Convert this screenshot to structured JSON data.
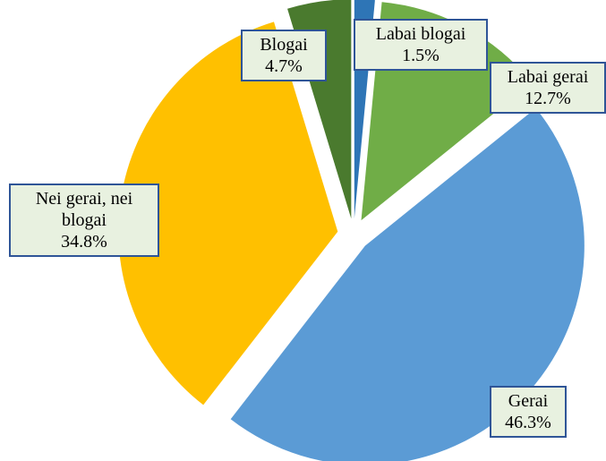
{
  "chart_data": {
    "type": "pie",
    "categories": [
      "Labai blogai",
      "Labai gerai",
      "Gerai",
      "Nei gerai, nei blogai",
      "Blogai"
    ],
    "values": [
      1.5,
      12.7,
      46.3,
      34.8,
      4.7
    ],
    "value_labels": [
      "1.5%",
      "12.7%",
      "46.3%",
      "34.8%",
      "4.7%"
    ],
    "colors": [
      "#2e75b6",
      "#70ad47",
      "#5b9bd5",
      "#ffc000",
      "#4a7a2e"
    ]
  }
}
